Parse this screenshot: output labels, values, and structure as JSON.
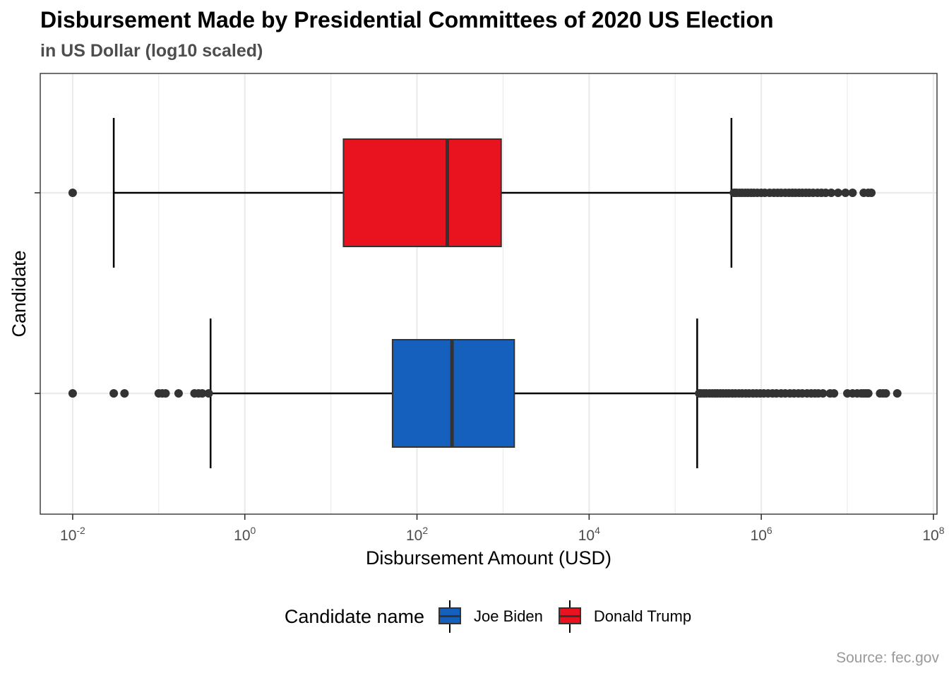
{
  "title": "Disbursement Made by Presidential Committees of 2020 US Election",
  "subtitle": "in US Dollar (log10 scaled)",
  "caption": "Source: fec.gov",
  "legend": {
    "title": "Candidate name",
    "items": [
      {
        "label": "Joe Biden",
        "color": "#1560BD"
      },
      {
        "label": "Donald Trump",
        "color": "#E8131F"
      }
    ]
  },
  "chart_data": {
    "type": "boxplot",
    "title": "Disbursement Made by Presidential Committees of 2020 US Election",
    "subtitle": "in US Dollar (log10 scaled)",
    "xlabel": "Disbursement Amount (USD)",
    "ylabel": "Candidate",
    "x_scale": "log10",
    "xlim": [
      0.0042,
      110000000
    ],
    "x_ticks": [
      {
        "value": 0.01,
        "base": "10",
        "exp": "-2"
      },
      {
        "value": 1,
        "base": "10",
        "exp": "0"
      },
      {
        "value": 100,
        "base": "10",
        "exp": "2"
      },
      {
        "value": 10000,
        "base": "10",
        "exp": "4"
      },
      {
        "value": 1000000,
        "base": "10",
        "exp": "6"
      },
      {
        "value": 100000000,
        "base": "10",
        "exp": "8"
      }
    ],
    "grid": true,
    "legend_position": "bottom",
    "colors": {
      "box_outline": "#333333",
      "whisker": "#000000",
      "outlier": "#333333",
      "grid": "#ebebeb",
      "panel_border": "#333333"
    },
    "series": [
      {
        "name": "Donald Trump",
        "color": "#E8131F",
        "whisker_low": 0.03,
        "q1": 14,
        "median": 225,
        "q3": 950,
        "whisker_high": 450000,
        "outliers": [
          0.01,
          480000,
          500000,
          520000,
          560000,
          600000,
          650000,
          700000,
          760000,
          820000,
          900000,
          1000000,
          1100000,
          1250000,
          1400000,
          1550000,
          1700000,
          1900000,
          2100000,
          2300000,
          2500000,
          2750000,
          3000000,
          3300000,
          3600000,
          4000000,
          4500000,
          5000000,
          5600000,
          6500000,
          7800000,
          9500000,
          11500000,
          15500000,
          17500000,
          19000000
        ]
      },
      {
        "name": "Joe Biden",
        "color": "#1560BD",
        "whisker_low": 0.4,
        "q1": 52,
        "median": 255,
        "q3": 1350,
        "whisker_high": 180000,
        "outliers": [
          0.01,
          0.03,
          0.04,
          0.1,
          0.11,
          0.12,
          0.17,
          0.26,
          0.29,
          0.32,
          0.38,
          190000,
          200000,
          215000,
          230000,
          250000,
          270000,
          290000,
          310000,
          335000,
          360000,
          390000,
          420000,
          460000,
          500000,
          550000,
          600000,
          660000,
          720000,
          800000,
          880000,
          970000,
          1070000,
          1200000,
          1350000,
          1500000,
          1700000,
          1900000,
          2150000,
          2400000,
          2700000,
          3000000,
          3400000,
          3800000,
          4200000,
          4600000,
          5200000,
          6300000,
          7000000,
          10000000,
          11500000,
          13000000,
          14500000,
          15500000,
          16500000,
          17500000,
          24000000,
          26000000,
          28000000,
          38000000
        ]
      }
    ]
  }
}
